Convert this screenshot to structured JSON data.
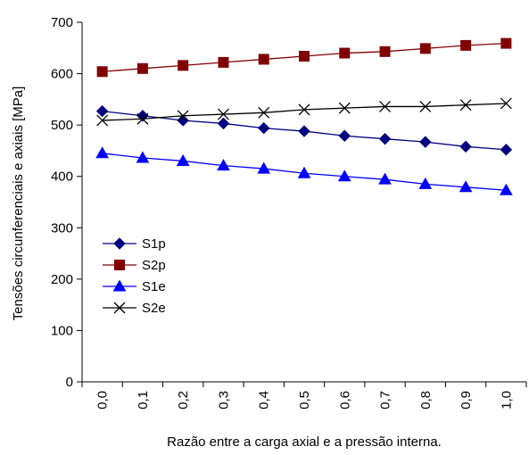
{
  "chart_data": {
    "type": "line",
    "title": "",
    "xlabel": "Razão entre a carga axial e a pressão interna.",
    "ylabel": "Tensões circunferenciais e axiais [MPa]",
    "categories": [
      "0,0",
      "0,1",
      "0,2",
      "0,3",
      "0,4",
      "0,5",
      "0,6",
      "0,7",
      "0,8",
      "0,9",
      "1,0"
    ],
    "ylim": [
      0,
      700
    ],
    "yticks": [
      0,
      100,
      200,
      300,
      400,
      500,
      600,
      700
    ],
    "grid": false,
    "legend_position": "left-center",
    "series": [
      {
        "name": "S1p",
        "color": "#000080",
        "marker": "diamond",
        "values": [
          527,
          518,
          509,
          503,
          494,
          488,
          479,
          473,
          467,
          458,
          452
        ]
      },
      {
        "name": "S2p",
        "color": "#800000",
        "marker": "square",
        "values": [
          604,
          610,
          616,
          622,
          628,
          634,
          640,
          643,
          649,
          655,
          659
        ]
      },
      {
        "name": "S1e",
        "color": "#0000ff",
        "marker": "triangle",
        "values": [
          445,
          436,
          430,
          421,
          415,
          406,
          400,
          394,
          385,
          379,
          373
        ]
      },
      {
        "name": "S2e",
        "color": "#000000",
        "marker": "x",
        "values": [
          509,
          512,
          518,
          521,
          524,
          530,
          533,
          536,
          536,
          539,
          542
        ]
      }
    ]
  }
}
